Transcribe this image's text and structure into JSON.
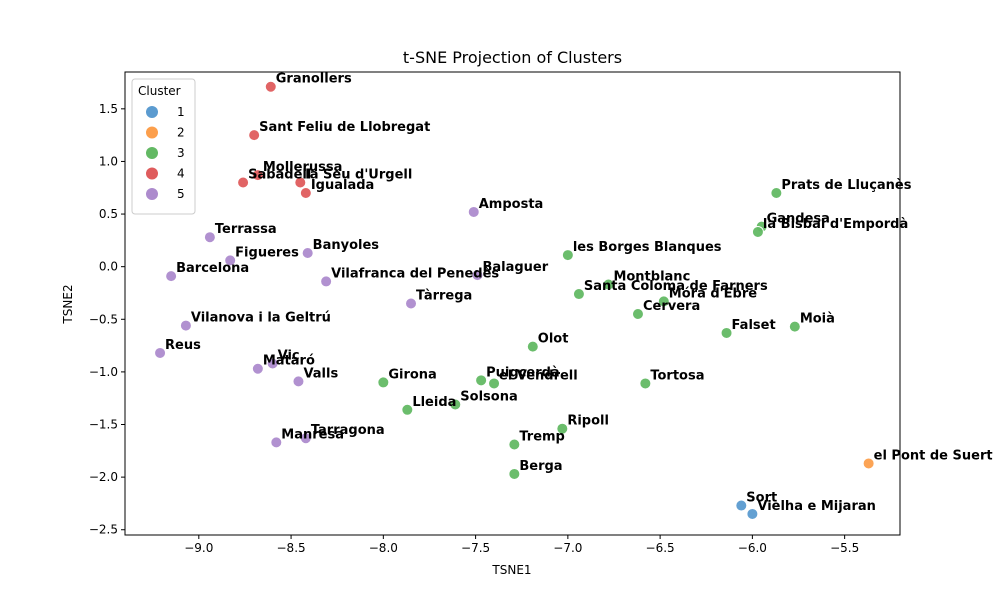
{
  "chart_data": {
    "type": "scatter",
    "title": "t-SNE Projection of Clusters",
    "xlabel": "TSNE1",
    "ylabel": "TSNE2",
    "xlim": [
      -9.4,
      -5.2
    ],
    "ylim": [
      -2.55,
      1.85
    ],
    "xticks": [
      -9.0,
      -8.5,
      -8.0,
      -7.5,
      -7.0,
      -6.5,
      -6.0,
      -5.5
    ],
    "xtick_labels": [
      "−9.0",
      "−8.5",
      "−8.0",
      "−7.5",
      "−7.0",
      "−6.5",
      "−6.0",
      "−5.5"
    ],
    "yticks": [
      -2.5,
      -2.0,
      -1.5,
      -1.0,
      -0.5,
      0.0,
      0.5,
      1.0,
      1.5
    ],
    "ytick_labels": [
      "−2.5",
      "−2.0",
      "−1.5",
      "−1.0",
      "−0.5",
      "0.0",
      "0.5",
      "1.0",
      "1.5"
    ],
    "grid": false,
    "legend": {
      "title": "Cluster",
      "placement": "top-left",
      "entries": [
        {
          "label": "1",
          "color": "#5b9bd0"
        },
        {
          "label": "2",
          "color": "#fc9f4c"
        },
        {
          "label": "3",
          "color": "#63b964"
        },
        {
          "label": "4",
          "color": "#df5c5d"
        },
        {
          "label": "5",
          "color": "#ad8bcd"
        }
      ]
    },
    "points": [
      {
        "label": "Sort",
        "cluster": "1",
        "x": -6.06,
        "y": -2.27
      },
      {
        "label": "Vielha e Mijaran",
        "cluster": "1",
        "x": -6.0,
        "y": -2.35
      },
      {
        "label": "el Pont de Suert",
        "cluster": "2",
        "x": -5.37,
        "y": -1.87
      },
      {
        "label": "Prats de Lluçanès",
        "cluster": "3",
        "x": -5.87,
        "y": 0.7
      },
      {
        "label": "Gandesa",
        "cluster": "3",
        "x": -5.95,
        "y": 0.38
      },
      {
        "label": "la Bisbal d'Empordà",
        "cluster": "3",
        "x": -5.97,
        "y": 0.33
      },
      {
        "label": "les Borges Blanques",
        "cluster": "3",
        "x": -7.0,
        "y": 0.11
      },
      {
        "label": "Montblanc",
        "cluster": "3",
        "x": -6.78,
        "y": -0.17
      },
      {
        "label": "Santa Coloma de Farners",
        "cluster": "3",
        "x": -6.94,
        "y": -0.26
      },
      {
        "label": "Móra d'Ebre",
        "cluster": "3",
        "x": -6.48,
        "y": -0.33
      },
      {
        "label": "Cervera",
        "cluster": "3",
        "x": -6.62,
        "y": -0.45
      },
      {
        "label": "Moià",
        "cluster": "3",
        "x": -5.77,
        "y": -0.57
      },
      {
        "label": "Falset",
        "cluster": "3",
        "x": -6.14,
        "y": -0.63
      },
      {
        "label": "Olot",
        "cluster": "3",
        "x": -7.19,
        "y": -0.76
      },
      {
        "label": "Puigcerdà",
        "cluster": "3",
        "x": -7.47,
        "y": -1.08
      },
      {
        "label": "el Vendrell",
        "cluster": "3",
        "x": -7.4,
        "y": -1.11
      },
      {
        "label": "Tortosa",
        "cluster": "3",
        "x": -6.58,
        "y": -1.11
      },
      {
        "label": "Girona",
        "cluster": "3",
        "x": -8.0,
        "y": -1.1
      },
      {
        "label": "Solsona",
        "cluster": "3",
        "x": -7.61,
        "y": -1.31
      },
      {
        "label": "Lleida",
        "cluster": "3",
        "x": -7.87,
        "y": -1.36
      },
      {
        "label": "Ripoll",
        "cluster": "3",
        "x": -7.03,
        "y": -1.54
      },
      {
        "label": "Tremp",
        "cluster": "3",
        "x": -7.29,
        "y": -1.69
      },
      {
        "label": "Berga",
        "cluster": "3",
        "x": -7.29,
        "y": -1.97
      },
      {
        "label": "Granollers",
        "cluster": "4",
        "x": -8.61,
        "y": 1.71
      },
      {
        "label": "Sant Feliu de Llobregat",
        "cluster": "4",
        "x": -8.7,
        "y": 1.25
      },
      {
        "label": "Mollerussa",
        "cluster": "4",
        "x": -8.68,
        "y": 0.87
      },
      {
        "label": "la Seu d'Urgell",
        "cluster": "4",
        "x": -8.45,
        "y": 0.8
      },
      {
        "label": "Sabadell",
        "cluster": "4",
        "x": -8.76,
        "y": 0.8
      },
      {
        "label": "Igualada",
        "cluster": "4",
        "x": -8.42,
        "y": 0.7
      },
      {
        "label": "Amposta",
        "cluster": "5",
        "x": -7.51,
        "y": 0.52
      },
      {
        "label": "Terrassa",
        "cluster": "5",
        "x": -8.94,
        "y": 0.28
      },
      {
        "label": "Banyoles",
        "cluster": "5",
        "x": -8.41,
        "y": 0.13
      },
      {
        "label": "Figueres",
        "cluster": "5",
        "x": -8.83,
        "y": 0.06
      },
      {
        "label": "Barcelona",
        "cluster": "5",
        "x": -9.15,
        "y": -0.09
      },
      {
        "label": "Balaguer",
        "cluster": "5",
        "x": -7.49,
        "y": -0.08
      },
      {
        "label": "Vilafranca del Penedès",
        "cluster": "5",
        "x": -8.31,
        "y": -0.14
      },
      {
        "label": "Tàrrega",
        "cluster": "5",
        "x": -7.85,
        "y": -0.35
      },
      {
        "label": "Vilanova i la Geltrú",
        "cluster": "5",
        "x": -9.07,
        "y": -0.56
      },
      {
        "label": "Reus",
        "cluster": "5",
        "x": -9.21,
        "y": -0.82
      },
      {
        "label": "Vic",
        "cluster": "5",
        "x": -8.6,
        "y": -0.92
      },
      {
        "label": "Mataró",
        "cluster": "5",
        "x": -8.68,
        "y": -0.97
      },
      {
        "label": "Valls",
        "cluster": "5",
        "x": -8.46,
        "y": -1.09
      },
      {
        "label": "Tarragona",
        "cluster": "5",
        "x": -8.42,
        "y": -1.63
      },
      {
        "label": "Manresa",
        "cluster": "5",
        "x": -8.58,
        "y": -1.67
      }
    ]
  }
}
